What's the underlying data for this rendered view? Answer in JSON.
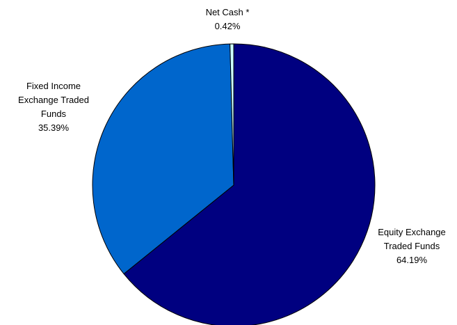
{
  "chart_data": {
    "type": "pie",
    "title": "",
    "slices": [
      {
        "label_lines": [
          "Equity Exchange",
          "Traded Funds"
        ],
        "percent_label": "64.19%",
        "value": 64.19,
        "color": "#000080"
      },
      {
        "label_lines": [
          "Fixed Income",
          "Exchange Traded",
          "Funds"
        ],
        "percent_label": "35.39%",
        "value": 35.39,
        "color": "#0066CC"
      },
      {
        "label_lines": [
          "Net Cash *"
        ],
        "percent_label": "0.42%",
        "value": 0.42,
        "color": "#CCFFFF"
      }
    ],
    "start_angle_deg": 0,
    "direction": "clockwise",
    "edge_color": "#000000",
    "legend": "none"
  }
}
